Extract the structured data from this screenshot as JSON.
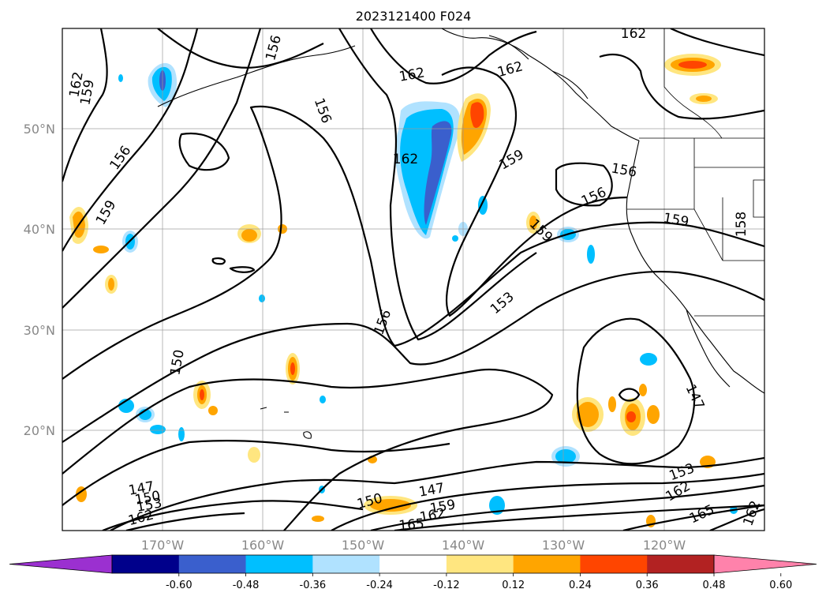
{
  "title": "2023121400 F024",
  "map": {
    "extent": {
      "lon": [
        -180,
        -110
      ],
      "lat": [
        10,
        60
      ]
    },
    "latitude_labels": [
      "50°N",
      "40°N",
      "30°N",
      "20°N"
    ],
    "longitude_labels": [
      "170°W",
      "160°W",
      "150°W",
      "140°W",
      "130°W",
      "120°W"
    ],
    "grid": true
  },
  "contour_labels": [
    "162",
    "159",
    "156",
    "159",
    "156",
    "162",
    "162",
    "156",
    "162",
    "162",
    "159",
    "156",
    "159",
    "156",
    "159",
    "153",
    "158",
    "156",
    "150",
    "147",
    "153",
    "162",
    "165",
    "162",
    "147",
    "150",
    "159",
    "147",
    "150",
    "153",
    "162",
    "165",
    "162"
  ],
  "colorbar": {
    "ticks": [
      "-0.60",
      "-0.48",
      "-0.36",
      "-0.24",
      "-0.12",
      "0.12",
      "0.24",
      "0.36",
      "0.48",
      "0.60"
    ],
    "colors": [
      "#9b30d0",
      "#00008b",
      "#3a5fcd",
      "#00bfff",
      "#b0e2ff",
      "#ffffff",
      "#ffe680",
      "#ffa500",
      "#ff4500",
      "#b22222",
      "#ff82ab"
    ]
  },
  "fill_colors": {
    "neg_light": "#b0e2ff",
    "neg_mid": "#00bfff",
    "neg_strong": "#3a5fcd",
    "pos_light": "#ffe680",
    "pos_mid": "#ffa500",
    "pos_strong": "#ff4500"
  }
}
